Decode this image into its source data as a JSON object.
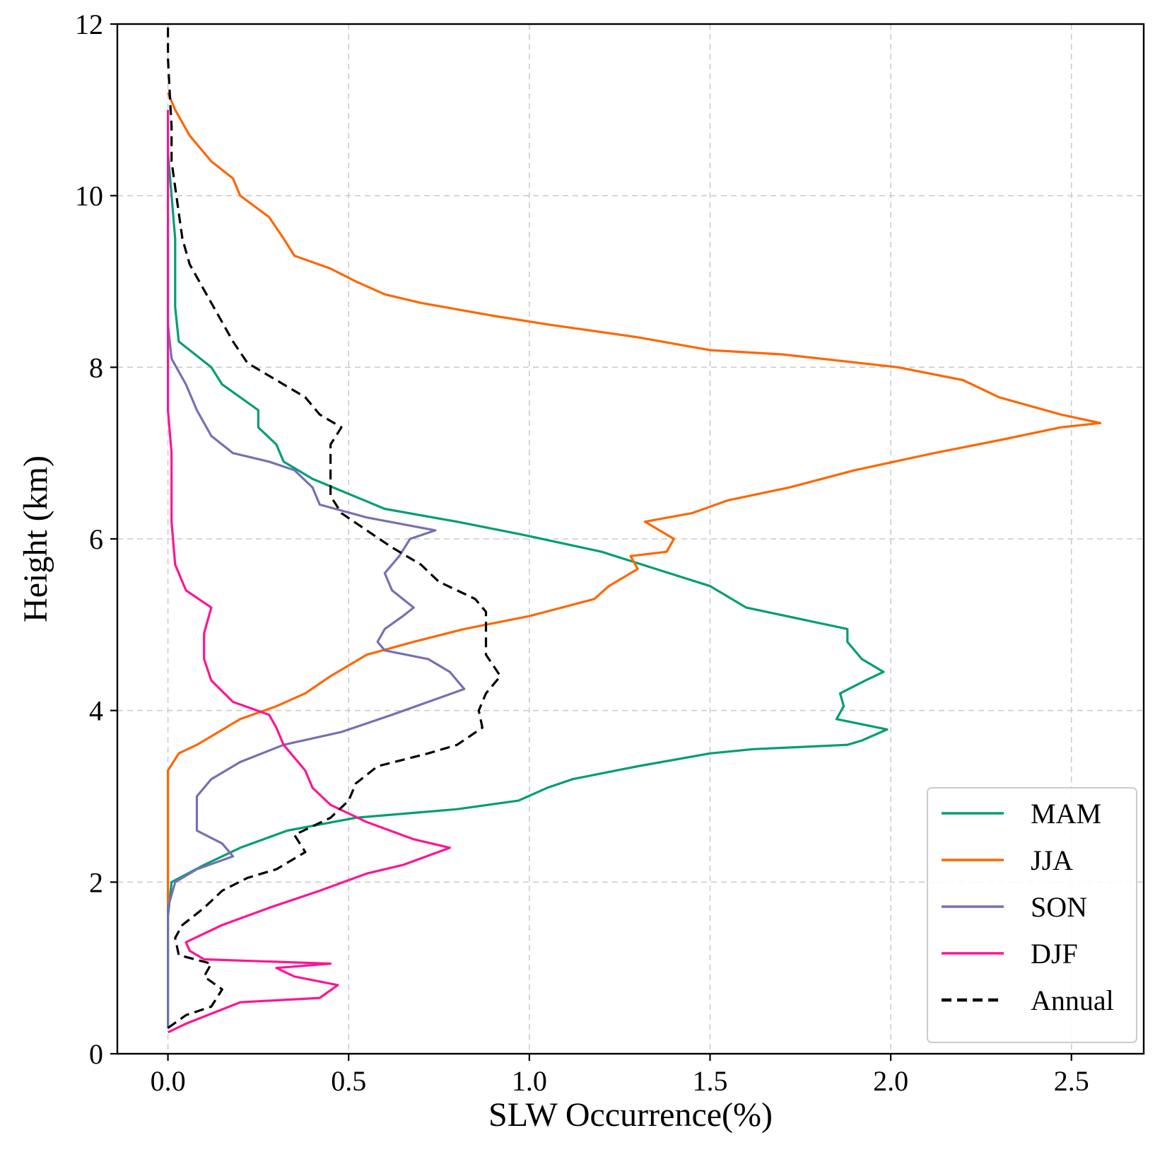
{
  "chart_data": {
    "type": "line",
    "orientation": "vertical-profile",
    "title": "",
    "xlabel": "SLW Occurrence(%)",
    "ylabel": "Height (km)",
    "xlim": [
      -0.14,
      2.7
    ],
    "ylim": [
      0,
      12
    ],
    "x_ticks": [
      0.0,
      0.5,
      1.0,
      1.5,
      2.0,
      2.5
    ],
    "x_tick_labels": [
      "0.0",
      "0.5",
      "1.0",
      "1.5",
      "2.0",
      "2.5"
    ],
    "y_ticks": [
      0,
      2,
      4,
      6,
      8,
      10,
      12
    ],
    "y_tick_labels": [
      "0",
      "2",
      "4",
      "6",
      "8",
      "10",
      "12"
    ],
    "grid": true,
    "legend_position": "lower-right",
    "series": [
      {
        "name": "MAM",
        "color": "#009E73",
        "dash": "solid",
        "points": [
          [
            0,
            0.3
          ],
          [
            0,
            1.6
          ],
          [
            0.01,
            2.0
          ],
          [
            0.1,
            2.2
          ],
          [
            0.2,
            2.4
          ],
          [
            0.33,
            2.6
          ],
          [
            0.52,
            2.75
          ],
          [
            0.8,
            2.85
          ],
          [
            0.97,
            2.95
          ],
          [
            1.05,
            3.1
          ],
          [
            1.12,
            3.2
          ],
          [
            1.3,
            3.35
          ],
          [
            1.5,
            3.5
          ],
          [
            1.62,
            3.55
          ],
          [
            1.88,
            3.6
          ],
          [
            1.92,
            3.65
          ],
          [
            1.99,
            3.78
          ],
          [
            1.85,
            3.9
          ],
          [
            1.87,
            4.05
          ],
          [
            1.86,
            4.2
          ],
          [
            1.93,
            4.35
          ],
          [
            1.98,
            4.45
          ],
          [
            1.92,
            4.6
          ],
          [
            1.88,
            4.8
          ],
          [
            1.88,
            4.95
          ],
          [
            1.6,
            5.2
          ],
          [
            1.5,
            5.45
          ],
          [
            1.35,
            5.65
          ],
          [
            1.2,
            5.85
          ],
          [
            0.98,
            6.05
          ],
          [
            0.8,
            6.2
          ],
          [
            0.6,
            6.35
          ],
          [
            0.4,
            6.7
          ],
          [
            0.32,
            6.9
          ],
          [
            0.3,
            7.1
          ],
          [
            0.25,
            7.3
          ],
          [
            0.25,
            7.5
          ],
          [
            0.15,
            7.8
          ],
          [
            0.12,
            8.0
          ],
          [
            0.03,
            8.3
          ],
          [
            0.02,
            8.7
          ],
          [
            0.02,
            9.0
          ],
          [
            0.02,
            9.5
          ],
          [
            0.01,
            10.0
          ],
          [
            0,
            10.5
          ]
        ]
      },
      {
        "name": "JJA",
        "color": "#FF6600",
        "dash": "solid",
        "points": [
          [
            0,
            1.7
          ],
          [
            0,
            3.3
          ],
          [
            0.03,
            3.5
          ],
          [
            0.08,
            3.6
          ],
          [
            0.14,
            3.75
          ],
          [
            0.2,
            3.9
          ],
          [
            0.3,
            4.05
          ],
          [
            0.38,
            4.2
          ],
          [
            0.45,
            4.4
          ],
          [
            0.55,
            4.65
          ],
          [
            0.68,
            4.8
          ],
          [
            0.82,
            4.95
          ],
          [
            1.0,
            5.1
          ],
          [
            1.18,
            5.3
          ],
          [
            1.22,
            5.45
          ],
          [
            1.3,
            5.65
          ],
          [
            1.28,
            5.8
          ],
          [
            1.38,
            5.85
          ],
          [
            1.4,
            6.0
          ],
          [
            1.32,
            6.2
          ],
          [
            1.45,
            6.3
          ],
          [
            1.55,
            6.45
          ],
          [
            1.72,
            6.6
          ],
          [
            1.9,
            6.8
          ],
          [
            2.12,
            7.0
          ],
          [
            2.3,
            7.15
          ],
          [
            2.47,
            7.3
          ],
          [
            2.58,
            7.35
          ],
          [
            2.47,
            7.45
          ],
          [
            2.3,
            7.65
          ],
          [
            2.2,
            7.85
          ],
          [
            2.02,
            8.0
          ],
          [
            1.7,
            8.15
          ],
          [
            1.5,
            8.2
          ],
          [
            1.3,
            8.35
          ],
          [
            1.05,
            8.5
          ],
          [
            0.9,
            8.6
          ],
          [
            0.7,
            8.75
          ],
          [
            0.6,
            8.85
          ],
          [
            0.52,
            9.0
          ],
          [
            0.45,
            9.15
          ],
          [
            0.35,
            9.3
          ],
          [
            0.32,
            9.5
          ],
          [
            0.28,
            9.75
          ],
          [
            0.2,
            10.0
          ],
          [
            0.18,
            10.2
          ],
          [
            0.12,
            10.4
          ],
          [
            0.06,
            10.7
          ],
          [
            0.02,
            11.0
          ],
          [
            0,
            11.2
          ]
        ]
      },
      {
        "name": "SON",
        "color": "#7570B3",
        "dash": "solid",
        "points": [
          [
            0,
            0.3
          ],
          [
            0,
            1.7
          ],
          [
            0.02,
            2.0
          ],
          [
            0.08,
            2.15
          ],
          [
            0.18,
            2.3
          ],
          [
            0.15,
            2.45
          ],
          [
            0.08,
            2.6
          ],
          [
            0.08,
            2.8
          ],
          [
            0.08,
            3.0
          ],
          [
            0.12,
            3.2
          ],
          [
            0.2,
            3.4
          ],
          [
            0.32,
            3.6
          ],
          [
            0.48,
            3.75
          ],
          [
            0.62,
            3.95
          ],
          [
            0.72,
            4.1
          ],
          [
            0.82,
            4.25
          ],
          [
            0.78,
            4.45
          ],
          [
            0.72,
            4.6
          ],
          [
            0.6,
            4.7
          ],
          [
            0.58,
            4.8
          ],
          [
            0.6,
            4.95
          ],
          [
            0.65,
            5.1
          ],
          [
            0.68,
            5.2
          ],
          [
            0.62,
            5.4
          ],
          [
            0.6,
            5.6
          ],
          [
            0.64,
            5.8
          ],
          [
            0.67,
            6.0
          ],
          [
            0.74,
            6.1
          ],
          [
            0.55,
            6.25
          ],
          [
            0.42,
            6.4
          ],
          [
            0.4,
            6.6
          ],
          [
            0.35,
            6.8
          ],
          [
            0.28,
            6.9
          ],
          [
            0.18,
            7.0
          ],
          [
            0.12,
            7.2
          ],
          [
            0.08,
            7.5
          ],
          [
            0.05,
            7.8
          ],
          [
            0.01,
            8.1
          ],
          [
            0,
            8.5
          ]
        ]
      },
      {
        "name": "DJF",
        "color": "#FF1493",
        "dash": "solid",
        "points": [
          [
            0,
            0.25
          ],
          [
            0.05,
            0.35
          ],
          [
            0.2,
            0.6
          ],
          [
            0.42,
            0.65
          ],
          [
            0.47,
            0.8
          ],
          [
            0.35,
            0.9
          ],
          [
            0.3,
            1.0
          ],
          [
            0.45,
            1.05
          ],
          [
            0.1,
            1.1
          ],
          [
            0.06,
            1.2
          ],
          [
            0.05,
            1.3
          ],
          [
            0.15,
            1.5
          ],
          [
            0.28,
            1.7
          ],
          [
            0.42,
            1.9
          ],
          [
            0.55,
            2.1
          ],
          [
            0.65,
            2.2
          ],
          [
            0.78,
            2.4
          ],
          [
            0.68,
            2.5
          ],
          [
            0.55,
            2.7
          ],
          [
            0.45,
            2.9
          ],
          [
            0.4,
            3.1
          ],
          [
            0.38,
            3.3
          ],
          [
            0.32,
            3.6
          ],
          [
            0.3,
            3.8
          ],
          [
            0.28,
            3.95
          ],
          [
            0.18,
            4.1
          ],
          [
            0.12,
            4.35
          ],
          [
            0.1,
            4.6
          ],
          [
            0.1,
            4.9
          ],
          [
            0.12,
            5.2
          ],
          [
            0.05,
            5.4
          ],
          [
            0.02,
            5.7
          ],
          [
            0.01,
            6.2
          ],
          [
            0.01,
            6.6
          ],
          [
            0.01,
            7.0
          ],
          [
            0,
            7.5
          ],
          [
            0,
            8.5
          ],
          [
            0,
            10.0
          ],
          [
            0,
            11.0
          ]
        ]
      },
      {
        "name": "Annual",
        "color": "#000000",
        "dash": "dashed",
        "points": [
          [
            0,
            0.3
          ],
          [
            0.05,
            0.45
          ],
          [
            0.12,
            0.55
          ],
          [
            0.15,
            0.75
          ],
          [
            0.1,
            0.9
          ],
          [
            0.12,
            1.05
          ],
          [
            0.03,
            1.15
          ],
          [
            0.02,
            1.35
          ],
          [
            0.04,
            1.5
          ],
          [
            0.1,
            1.7
          ],
          [
            0.15,
            1.9
          ],
          [
            0.22,
            2.05
          ],
          [
            0.3,
            2.15
          ],
          [
            0.38,
            2.35
          ],
          [
            0.35,
            2.55
          ],
          [
            0.45,
            2.75
          ],
          [
            0.5,
            2.95
          ],
          [
            0.52,
            3.15
          ],
          [
            0.58,
            3.35
          ],
          [
            0.72,
            3.5
          ],
          [
            0.8,
            3.6
          ],
          [
            0.87,
            3.8
          ],
          [
            0.86,
            4.0
          ],
          [
            0.88,
            4.2
          ],
          [
            0.92,
            4.4
          ],
          [
            0.88,
            4.65
          ],
          [
            0.88,
            4.9
          ],
          [
            0.88,
            5.15
          ],
          [
            0.85,
            5.3
          ],
          [
            0.75,
            5.5
          ],
          [
            0.7,
            5.7
          ],
          [
            0.62,
            5.9
          ],
          [
            0.55,
            6.1
          ],
          [
            0.48,
            6.3
          ],
          [
            0.45,
            6.5
          ],
          [
            0.45,
            6.7
          ],
          [
            0.45,
            6.9
          ],
          [
            0.45,
            7.1
          ],
          [
            0.48,
            7.3
          ],
          [
            0.42,
            7.45
          ],
          [
            0.38,
            7.65
          ],
          [
            0.3,
            7.85
          ],
          [
            0.22,
            8.05
          ],
          [
            0.18,
            8.3
          ],
          [
            0.14,
            8.6
          ],
          [
            0.1,
            8.9
          ],
          [
            0.06,
            9.2
          ],
          [
            0.04,
            9.5
          ],
          [
            0.03,
            9.8
          ],
          [
            0.02,
            10.1
          ],
          [
            0.01,
            10.4
          ],
          [
            0.01,
            10.8
          ],
          [
            0.005,
            11.2
          ],
          [
            0,
            11.6
          ],
          [
            0,
            12.0
          ]
        ]
      }
    ]
  }
}
